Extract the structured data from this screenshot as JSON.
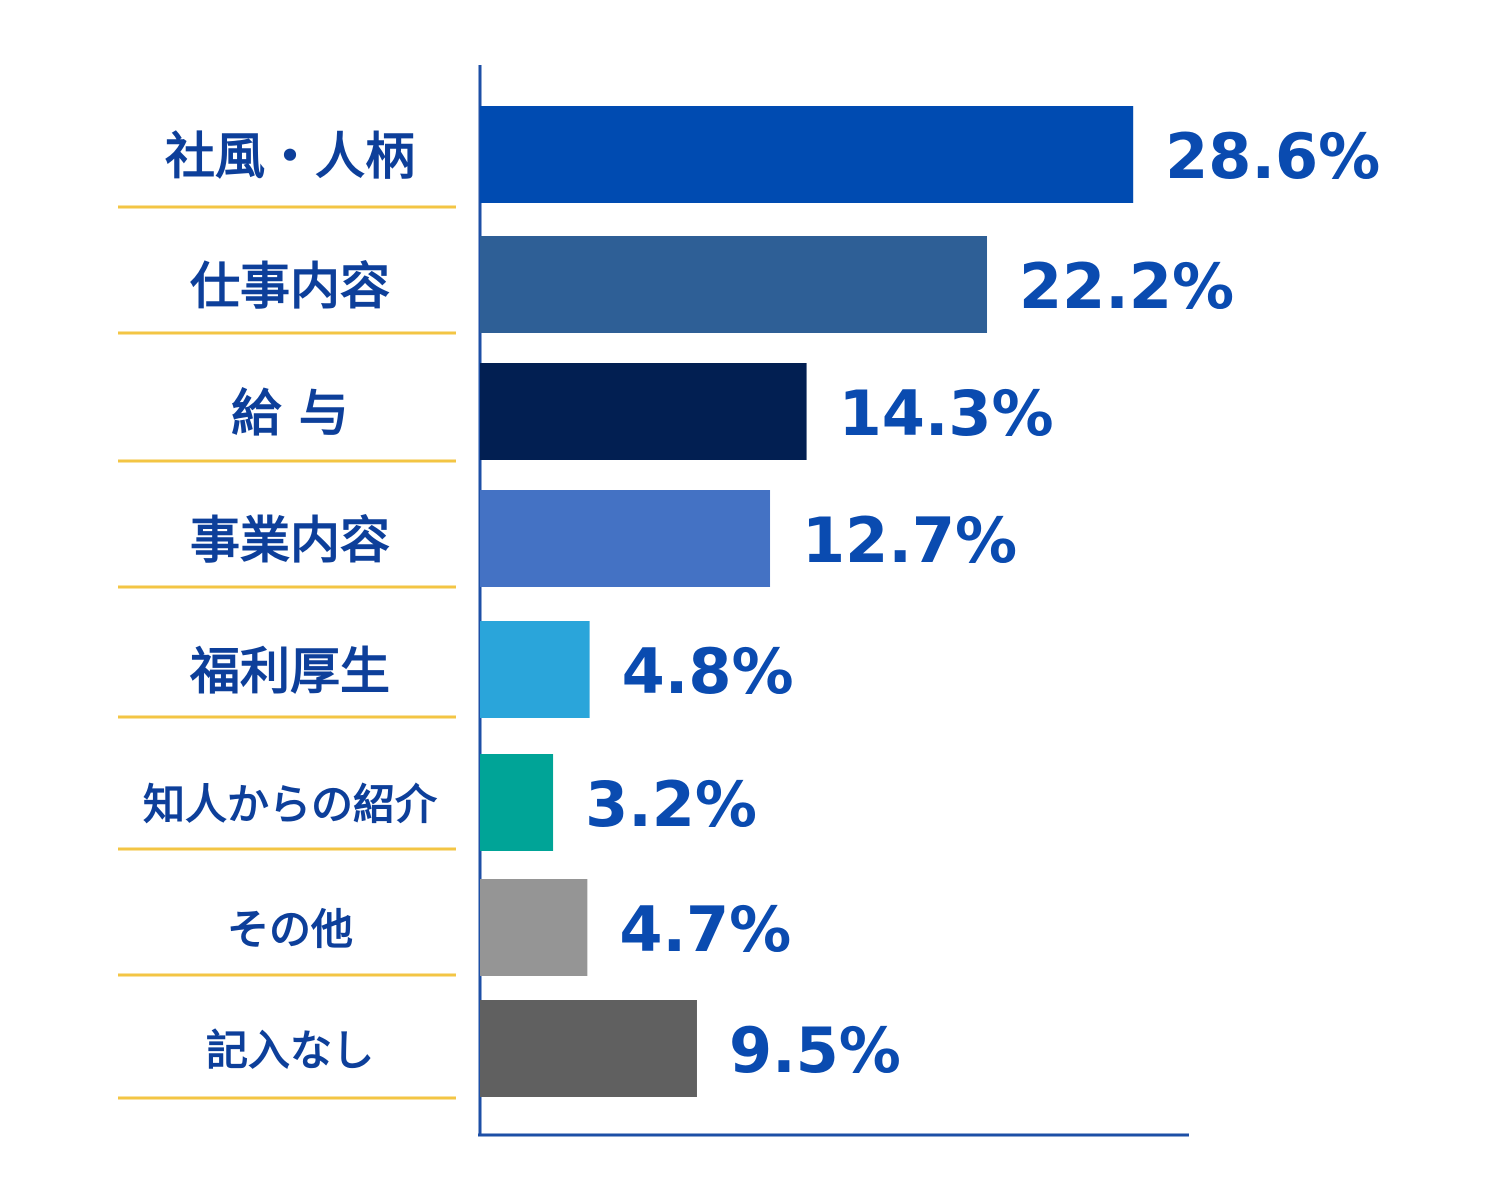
{
  "chart_data": {
    "type": "bar",
    "orientation": "horizontal",
    "categories": [
      "社風・人柄",
      "仕事内容",
      "給 与",
      "事業内容",
      "福利厚生",
      "知人からの紹介",
      "その他",
      "記入なし"
    ],
    "values": [
      28.6,
      22.2,
      14.3,
      12.7,
      4.8,
      3.2,
      4.7,
      9.5
    ],
    "value_labels": [
      "28.6%",
      "22.2%",
      "14.3%",
      "12.7%",
      "4.8%",
      "3.2%",
      "4.7%",
      "9.5%"
    ],
    "colors": [
      "#004bb1",
      "#2e5f96",
      "#021f52",
      "#4472c4",
      "#2aa5da",
      "#00a497",
      "#959595",
      "#606060"
    ],
    "xlim": [
      0,
      31
    ]
  }
}
